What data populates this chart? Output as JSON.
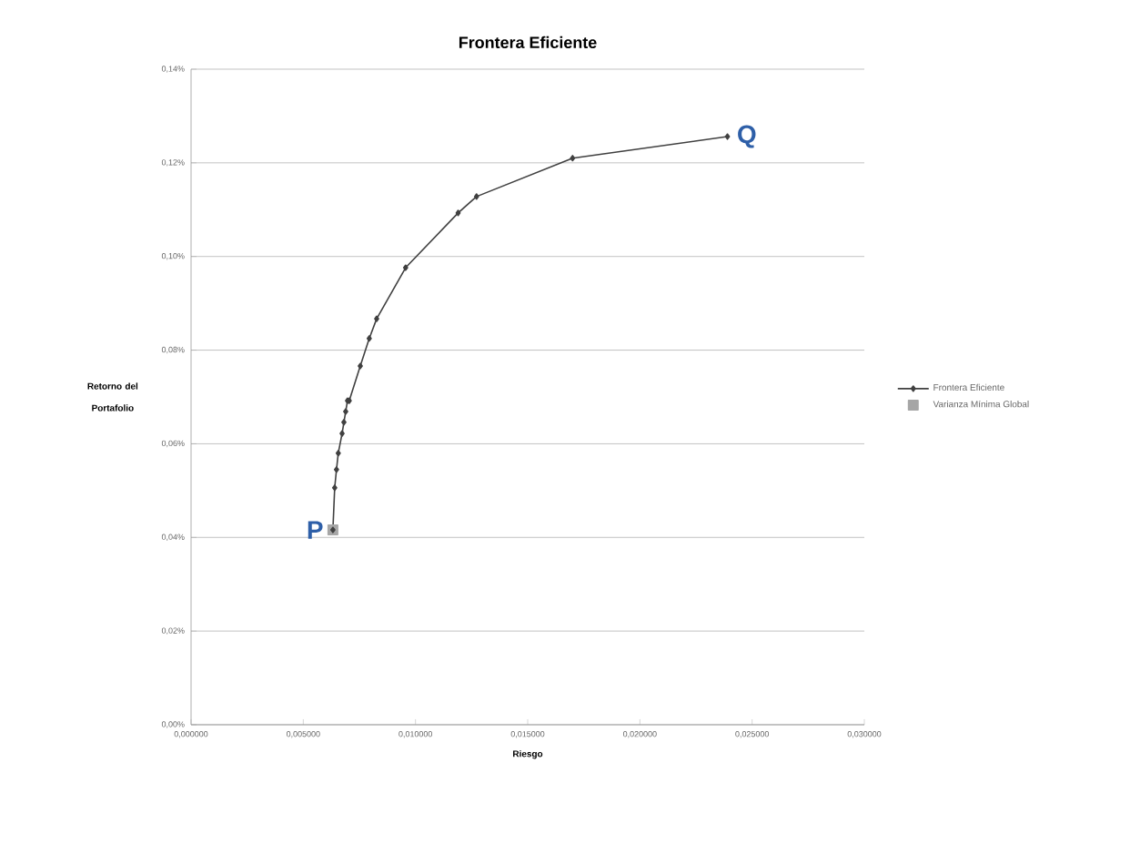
{
  "chart_data": {
    "type": "line",
    "title": "Frontera Eficiente",
    "xlabel": "Riesgo",
    "ylabel": "Retorno del Portafolio",
    "xlim": [
      0,
      0.03
    ],
    "xticks": [
      {
        "value": 0,
        "label": "0,000000"
      },
      {
        "value": 0.005,
        "label": "0,005000"
      },
      {
        "value": 0.01,
        "label": "0,010000"
      },
      {
        "value": 0.015,
        "label": "0,015000"
      },
      {
        "value": 0.02,
        "label": "0,020000"
      },
      {
        "value": 0.025,
        "label": "0,025000"
      },
      {
        "value": 0.03,
        "label": "0,030000"
      }
    ],
    "ylim": [
      0,
      0.14
    ],
    "yticks": [
      {
        "value": 0,
        "label": "0,00%"
      },
      {
        "value": 0.02,
        "label": "0,02%"
      },
      {
        "value": 0.04,
        "label": "0,04%"
      },
      {
        "value": 0.06,
        "label": "0,06%"
      },
      {
        "value": 0.08,
        "label": "0,08%"
      },
      {
        "value": 0.1,
        "label": "0,10%"
      },
      {
        "value": 0.12,
        "label": "0,12%"
      },
      {
        "value": 0.14,
        "label": "0,14%"
      }
    ],
    "grid": "y",
    "legend": "right",
    "series": [
      {
        "name": "Frontera Eficiente",
        "color": "#404040",
        "marker": "diamond",
        "x": [
          0.00632,
          0.0064,
          0.00648,
          0.00656,
          0.00673,
          0.00681,
          0.00689,
          0.00697,
          0.00705,
          0.00754,
          0.00794,
          0.00827,
          0.00956,
          0.0119,
          0.01272,
          0.017,
          0.0239
        ],
        "values": [
          0.0416,
          0.0506,
          0.0545,
          0.058,
          0.0622,
          0.0646,
          0.0669,
          0.0692,
          0.0692,
          0.0766,
          0.0825,
          0.0867,
          0.0976,
          0.1093,
          0.1128,
          0.121,
          0.1256
        ]
      },
      {
        "name": "Varianza Mínima Global",
        "color": "#a6a6a6",
        "marker": "square",
        "x": [
          0.00632
        ],
        "values": [
          0.0416
        ]
      }
    ],
    "annotations": [
      {
        "text": "P",
        "x": 0.00632,
        "y": 0.0416
      },
      {
        "text": "Q",
        "x": 0.0239,
        "y": 0.1256
      }
    ]
  }
}
